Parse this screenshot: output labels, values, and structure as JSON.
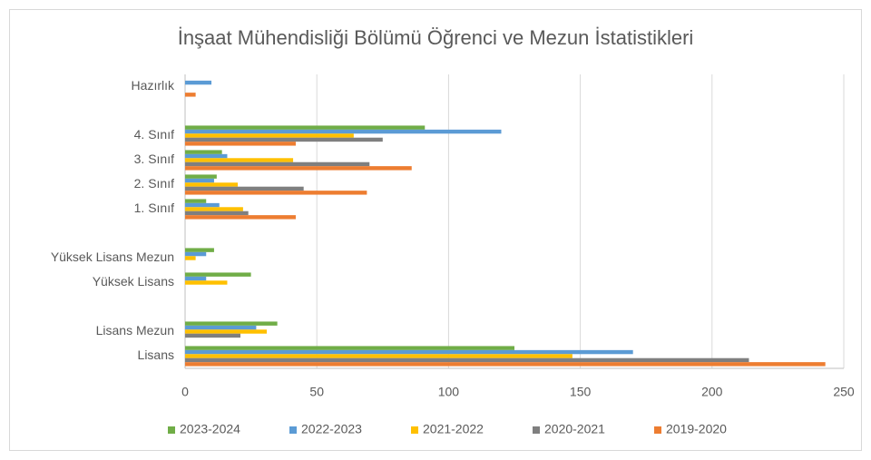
{
  "chart_data": {
    "type": "bar",
    "orientation": "horizontal",
    "title": "İnşaat Mühendisliği Bölümü Öğrenci ve Mezun İstatistikleri",
    "categories": [
      "Lisans",
      "Lisans Mezun",
      null,
      "Yüksek Lisans",
      "Yüksek Lisans Mezun",
      null,
      "1. Sınıf",
      "2. Sınıf",
      "3. Sınıf",
      "4. Sınıf",
      null,
      "Hazırlık"
    ],
    "series": [
      {
        "name": "2023-2024",
        "color": "#70ad47",
        "values": [
          125,
          35,
          null,
          25,
          11,
          null,
          8,
          12,
          14,
          91,
          null,
          0
        ]
      },
      {
        "name": "2022-2023",
        "color": "#5b9bd5",
        "values": [
          170,
          27,
          null,
          8,
          8,
          null,
          13,
          11,
          16,
          120,
          null,
          10
        ]
      },
      {
        "name": "2021-2022",
        "color": "#ffc000",
        "values": [
          147,
          31,
          null,
          16,
          4,
          null,
          22,
          20,
          41,
          64,
          null,
          0
        ]
      },
      {
        "name": "2020-2021",
        "color": "#7f7f7f",
        "values": [
          214,
          21,
          null,
          0,
          0,
          null,
          24,
          45,
          70,
          75,
          null,
          0
        ]
      },
      {
        "name": "2019-2020",
        "color": "#ed7d31",
        "values": [
          243,
          0,
          null,
          0,
          0,
          null,
          42,
          69,
          86,
          42,
          null,
          4
        ]
      }
    ],
    "xlim": [
      0,
      250
    ],
    "xticks": [
      0,
      50,
      100,
      150,
      200,
      250
    ],
    "grid": true,
    "legend": "bottom"
  }
}
